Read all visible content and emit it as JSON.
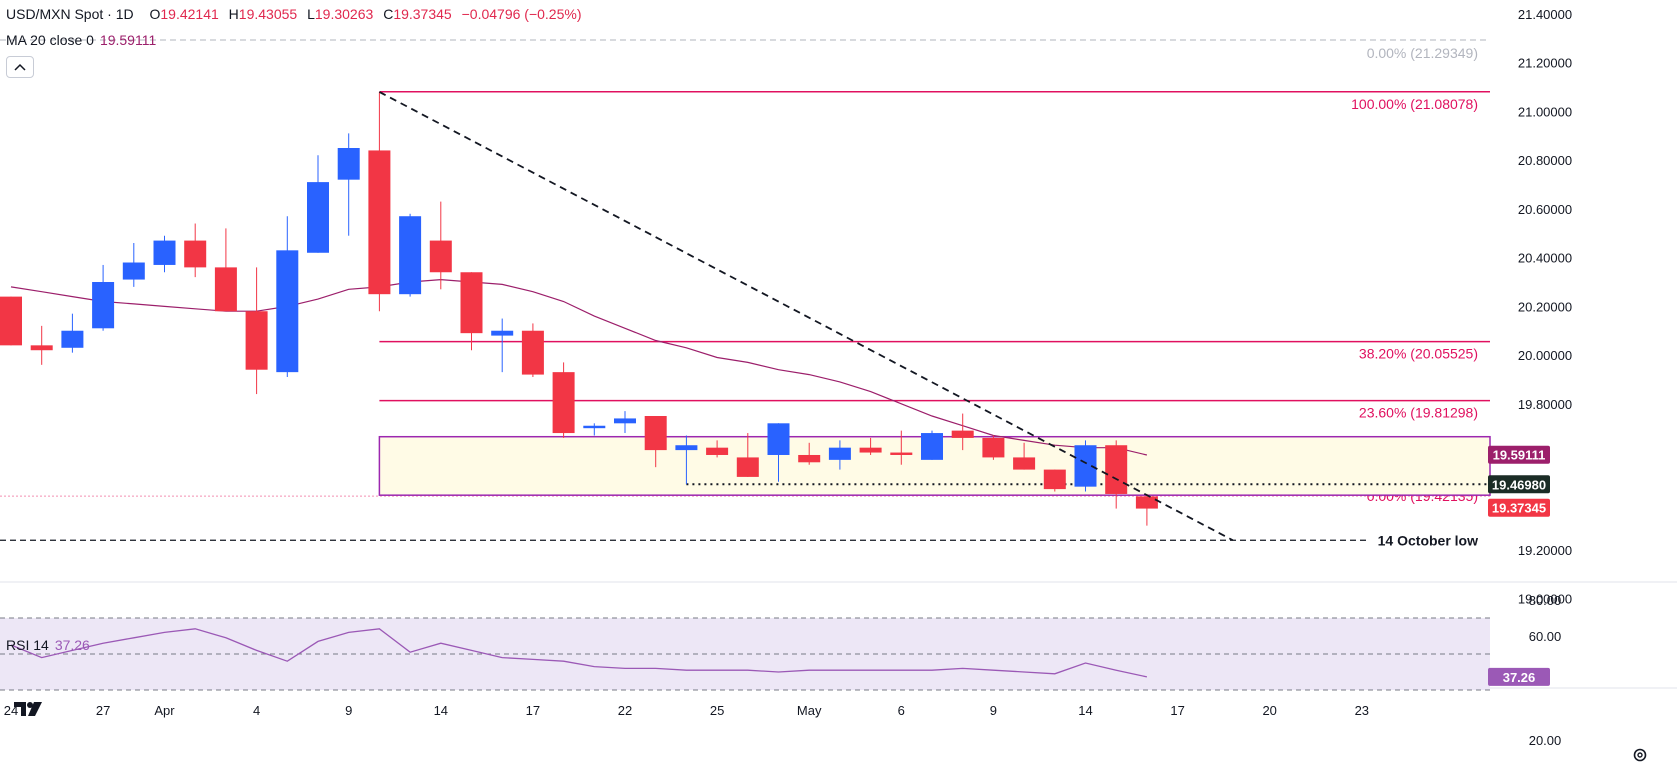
{
  "legend": {
    "title": "USD/MXN Spot · 1D",
    "o_label": "O",
    "o_value": "19.42141",
    "h_label": "H",
    "h_value": "19.43055",
    "l_label": "L",
    "l_value": "19.30263",
    "c_label": "C",
    "c_value": "19.37345",
    "change": "−0.04796 (−0.25%)",
    "ma_label": "MA 20 close 0",
    "ma_value": "19.59111",
    "rsi_label": "RSI 14",
    "rsi_value": "37.26"
  },
  "colors": {
    "up": "#2962ff",
    "down": "#f23645",
    "ma": "#9c1f6b",
    "fib": "#e0105f",
    "rsi": "#9b59b6",
    "rsi_band": "#ede7f6",
    "range_fill": "#fffbe6",
    "range_border": "#9c27b0"
  },
  "chart_data": {
    "type": "candlestick",
    "x_labels": [
      {
        "index": 0,
        "label": "24"
      },
      {
        "index": 3,
        "label": "27"
      },
      {
        "index": 5,
        "label": "Apr"
      },
      {
        "index": 8,
        "label": "4"
      },
      {
        "index": 11,
        "label": "9"
      },
      {
        "index": 14,
        "label": "14"
      },
      {
        "index": 17,
        "label": "17"
      },
      {
        "index": 20,
        "label": "22"
      },
      {
        "index": 23,
        "label": "25"
      },
      {
        "index": 26,
        "label": "May"
      },
      {
        "index": 29,
        "label": "6"
      },
      {
        "index": 32,
        "label": "9"
      },
      {
        "index": 35,
        "label": "14"
      },
      {
        "index": 38,
        "label": "17"
      },
      {
        "index": 41,
        "label": "20"
      },
      {
        "index": 44,
        "label": "23"
      }
    ],
    "y_ticks": [
      "21.40000",
      "21.20000",
      "21.00000",
      "20.80000",
      "20.60000",
      "20.40000",
      "20.20000",
      "20.00000",
      "19.80000",
      "19.20000",
      "19.00000"
    ],
    "ylim": [
      18.92,
      21.45
    ],
    "candles": [
      {
        "o": 20.24,
        "h": 20.24,
        "l": 20.04,
        "c": 20.04
      },
      {
        "o": 20.04,
        "h": 20.12,
        "l": 19.96,
        "c": 20.02
      },
      {
        "o": 20.03,
        "h": 20.17,
        "l": 20.01,
        "c": 20.1
      },
      {
        "o": 20.11,
        "h": 20.37,
        "l": 20.1,
        "c": 20.3
      },
      {
        "o": 20.31,
        "h": 20.46,
        "l": 20.28,
        "c": 20.38
      },
      {
        "o": 20.37,
        "h": 20.49,
        "l": 20.34,
        "c": 20.47
      },
      {
        "o": 20.47,
        "h": 20.54,
        "l": 20.32,
        "c": 20.36
      },
      {
        "o": 20.36,
        "h": 20.52,
        "l": 20.18,
        "c": 20.18
      },
      {
        "o": 20.18,
        "h": 20.36,
        "l": 19.84,
        "c": 19.94
      },
      {
        "o": 19.93,
        "h": 20.57,
        "l": 19.91,
        "c": 20.43
      },
      {
        "o": 20.42,
        "h": 20.82,
        "l": 20.42,
        "c": 20.71
      },
      {
        "o": 20.72,
        "h": 20.91,
        "l": 20.49,
        "c": 20.85
      },
      {
        "o": 20.84,
        "h": 21.08,
        "l": 20.18,
        "c": 20.25
      },
      {
        "o": 20.25,
        "h": 20.58,
        "l": 20.24,
        "c": 20.57
      },
      {
        "o": 20.47,
        "h": 20.63,
        "l": 20.27,
        "c": 20.34
      },
      {
        "o": 20.34,
        "h": 20.34,
        "l": 20.02,
        "c": 20.09
      },
      {
        "o": 20.08,
        "h": 20.15,
        "l": 19.93,
        "c": 20.1
      },
      {
        "o": 20.1,
        "h": 20.13,
        "l": 19.91,
        "c": 19.92
      },
      {
        "o": 19.93,
        "h": 19.97,
        "l": 19.66,
        "c": 19.68
      },
      {
        "o": 19.7,
        "h": 19.72,
        "l": 19.67,
        "c": 19.71
      },
      {
        "o": 19.72,
        "h": 19.77,
        "l": 19.68,
        "c": 19.74
      },
      {
        "o": 19.75,
        "h": 19.75,
        "l": 19.54,
        "c": 19.61
      },
      {
        "o": 19.61,
        "h": 19.67,
        "l": 19.47,
        "c": 19.63
      },
      {
        "o": 19.62,
        "h": 19.65,
        "l": 19.58,
        "c": 19.59
      },
      {
        "o": 19.58,
        "h": 19.68,
        "l": 19.5,
        "c": 19.5
      },
      {
        "o": 19.59,
        "h": 19.72,
        "l": 19.48,
        "c": 19.72
      },
      {
        "o": 19.59,
        "h": 19.64,
        "l": 19.55,
        "c": 19.56
      },
      {
        "o": 19.57,
        "h": 19.65,
        "l": 19.53,
        "c": 19.62
      },
      {
        "o": 19.62,
        "h": 19.66,
        "l": 19.59,
        "c": 19.6
      },
      {
        "o": 19.6,
        "h": 19.69,
        "l": 19.55,
        "c": 19.59
      },
      {
        "o": 19.57,
        "h": 19.69,
        "l": 19.57,
        "c": 19.68
      },
      {
        "o": 19.69,
        "h": 19.76,
        "l": 19.61,
        "c": 19.66
      },
      {
        "o": 19.66,
        "h": 19.67,
        "l": 19.57,
        "c": 19.58
      },
      {
        "o": 19.58,
        "h": 19.64,
        "l": 19.53,
        "c": 19.53
      },
      {
        "o": 19.53,
        "h": 19.53,
        "l": 19.44,
        "c": 19.45
      },
      {
        "o": 19.46,
        "h": 19.65,
        "l": 19.44,
        "c": 19.63
      },
      {
        "o": 19.63,
        "h": 19.65,
        "l": 19.37,
        "c": 19.43
      },
      {
        "o": 19.42,
        "h": 19.43,
        "l": 19.3,
        "c": 19.37
      }
    ],
    "ma20": [
      20.28,
      20.26,
      20.24,
      20.22,
      20.21,
      20.2,
      20.19,
      20.18,
      20.18,
      20.2,
      20.23,
      20.27,
      20.28,
      20.3,
      20.31,
      20.3,
      20.29,
      20.26,
      20.22,
      20.16,
      20.11,
      20.06,
      20.03,
      19.99,
      19.97,
      19.94,
      19.92,
      19.89,
      19.85,
      19.8,
      19.75,
      19.71,
      19.67,
      19.65,
      19.63,
      19.62,
      19.62,
      19.59
    ],
    "rsi": [
      55,
      48,
      52,
      56,
      59,
      62,
      64,
      59,
      52,
      46,
      57,
      62,
      64,
      51,
      56,
      52,
      48,
      47,
      46,
      43,
      42,
      42,
      41,
      41,
      41,
      40,
      41,
      41,
      41,
      41,
      41,
      42,
      41,
      40,
      39,
      45,
      41,
      37.26
    ],
    "rsi_ylim": [
      13,
      84
    ],
    "rsi_ticks": [
      "80.00",
      "60.00",
      "20.00"
    ],
    "rsi_band": [
      30,
      70
    ],
    "fib_levels": [
      {
        "label": "0.00% (21.29349)",
        "price": 21.29349,
        "dashed": true
      },
      {
        "label": "100.00% (21.08078)",
        "price": 21.08078,
        "dashed": false
      },
      {
        "label": "38.20% (20.05525)",
        "price": 20.05525,
        "dashed": false
      },
      {
        "label": "23.60% (19.81298)",
        "price": 19.81298,
        "dashed": false
      },
      {
        "label": "0.00% (19.42135)",
        "price": 19.42135,
        "dashed": false
      }
    ],
    "range_box": {
      "top": 19.665,
      "bottom": 19.425
    },
    "support_dotted": 19.4698,
    "october_low": {
      "label": "14 October low",
      "price": 19.24
    },
    "trendline": {
      "start_index": 12,
      "start_price": 21.08,
      "end_index": 39.8,
      "end_price": 19.24
    },
    "price_tags": [
      {
        "label": "19.59111",
        "price": 19.59111,
        "color": "#9c1f6b"
      },
      {
        "label": "19.46980",
        "price": 19.4698,
        "color": "#1b2c26"
      },
      {
        "label": "19.37345",
        "price": 19.37345,
        "color": "#f23645"
      }
    ],
    "rsi_tag": {
      "label": "37.26",
      "color": "#9b59b6"
    }
  }
}
